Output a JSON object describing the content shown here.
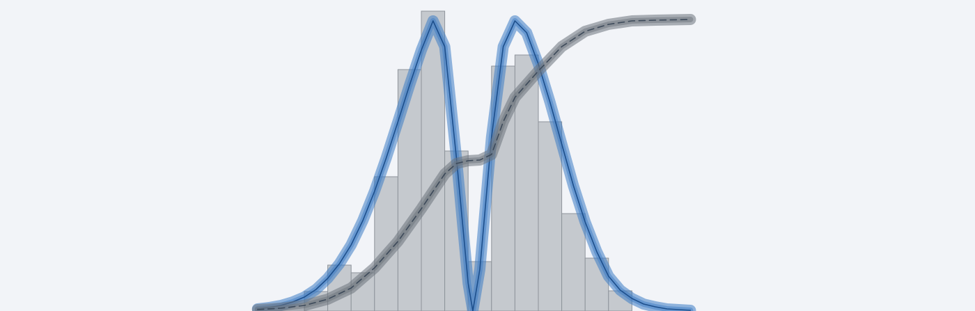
{
  "chart_data": {
    "type": "histogram",
    "bins": [
      0,
      1,
      2,
      3,
      4,
      5,
      6,
      7,
      8,
      9,
      10,
      11,
      12,
      13,
      14
    ],
    "counts": [
      28,
      66,
      55,
      193,
      347,
      431,
      230,
      71,
      352,
      368,
      272,
      140,
      76,
      29
    ],
    "color": "#c5c9ce",
    "edge_color": "#8e949b",
    "xlim": [
      -2,
      16.5
    ],
    "ylim": [
      0,
      447
    ],
    "grid": false,
    "series": [
      {
        "color": "#1d4f8c",
        "glow": "#3d7bc4",
        "dashed": false,
        "x": [
          -2,
          -1.5,
          -1,
          -0.5,
          0,
          0.5,
          1,
          1.5,
          2,
          2.5,
          3,
          3.5,
          4,
          4.5,
          5,
          5.5,
          6,
          6.5,
          7,
          7.2,
          7.5,
          8,
          8.5,
          9,
          9.5,
          10,
          10.5,
          11,
          11.5,
          12,
          12.5,
          13,
          13.5,
          14,
          14.5,
          15,
          15.5,
          16,
          16.5
        ],
        "values": [
          3,
          5,
          8,
          13,
          20,
          31,
          47,
          68,
          95,
          130,
          172,
          220,
          272,
          325,
          375,
          417,
          380,
          220,
          40,
          0,
          60,
          250,
          380,
          417,
          400,
          355,
          300,
          240,
          180,
          128,
          85,
          50,
          30,
          18,
          10,
          6,
          3,
          2,
          1
        ]
      },
      {
        "color": "#3d4a5a",
        "glow": "#6c737c",
        "dashed": true,
        "x": [
          -2,
          -1,
          0,
          1,
          2,
          3,
          4,
          5,
          6,
          6.5,
          7,
          7.5,
          8,
          8.5,
          9,
          10,
          11,
          12,
          13,
          14,
          15,
          16.5
        ],
        "values": [
          2,
          4,
          8,
          17,
          33,
          62,
          100,
          147,
          197,
          212,
          216,
          217,
          225,
          272,
          307,
          345,
          380,
          402,
          412,
          417,
          418,
          419
        ]
      }
    ]
  }
}
